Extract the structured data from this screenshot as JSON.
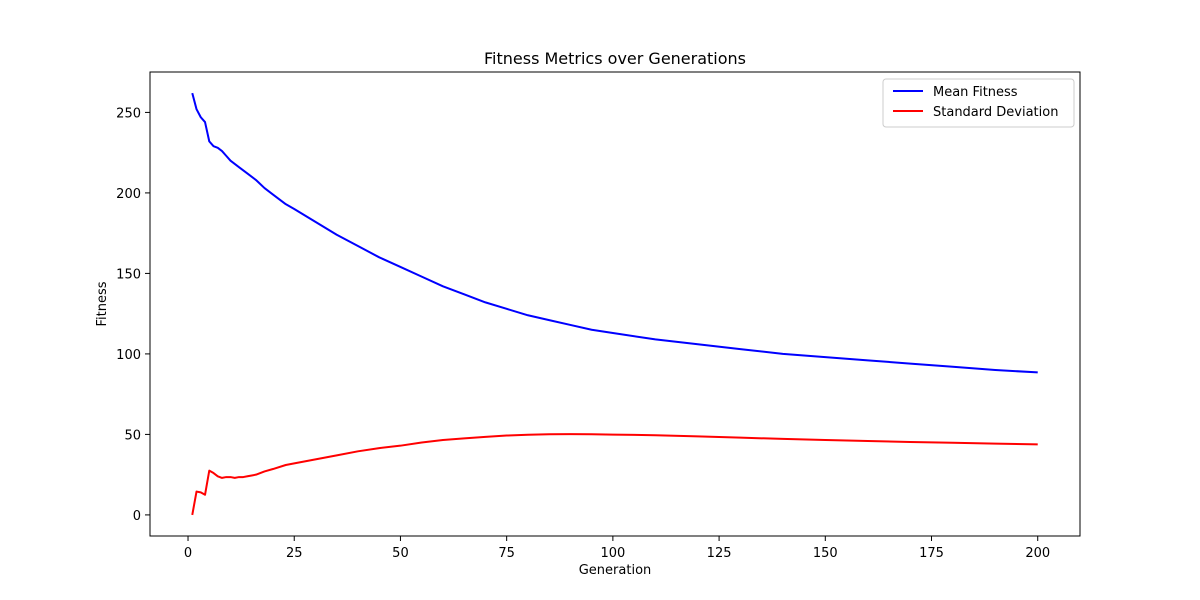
{
  "chart_data": {
    "type": "line",
    "title": "Fitness Metrics over Generations",
    "xlabel": "Generation",
    "ylabel": "Fitness",
    "xlim": [
      -8.95,
      209.95
    ],
    "ylim": [
      -13.1,
      275.1
    ],
    "xticks": [
      0,
      25,
      50,
      75,
      100,
      125,
      150,
      175,
      200
    ],
    "yticks": [
      0,
      50,
      100,
      150,
      200,
      250
    ],
    "grid": false,
    "legend_position": "top-right",
    "series": [
      {
        "name": "Mean Fitness",
        "color": "#0000ff",
        "points": [
          [
            1,
            262
          ],
          [
            2,
            252
          ],
          [
            3,
            247
          ],
          [
            4,
            244
          ],
          [
            5,
            232
          ],
          [
            6,
            229
          ],
          [
            7,
            228
          ],
          [
            8,
            226
          ],
          [
            9,
            223
          ],
          [
            10,
            220
          ],
          [
            12,
            216
          ],
          [
            14,
            212
          ],
          [
            16,
            208
          ],
          [
            18,
            203
          ],
          [
            20,
            199
          ],
          [
            23,
            193
          ],
          [
            25,
            190
          ],
          [
            30,
            182
          ],
          [
            35,
            174
          ],
          [
            40,
            167
          ],
          [
            45,
            160
          ],
          [
            50,
            154
          ],
          [
            55,
            148
          ],
          [
            60,
            142
          ],
          [
            65,
            137
          ],
          [
            70,
            132
          ],
          [
            75,
            128
          ],
          [
            80,
            124
          ],
          [
            85,
            121
          ],
          [
            90,
            118
          ],
          [
            95,
            115
          ],
          [
            100,
            113
          ],
          [
            110,
            109
          ],
          [
            120,
            106
          ],
          [
            130,
            103
          ],
          [
            140,
            100
          ],
          [
            150,
            98
          ],
          [
            160,
            96
          ],
          [
            170,
            94
          ],
          [
            180,
            92
          ],
          [
            190,
            90
          ],
          [
            200,
            88.5
          ]
        ]
      },
      {
        "name": "Standard Deviation",
        "color": "#ff0000",
        "points": [
          [
            1,
            0
          ],
          [
            2,
            14.5
          ],
          [
            3,
            14
          ],
          [
            4,
            12.5
          ],
          [
            5,
            27.5
          ],
          [
            6,
            26
          ],
          [
            7,
            24
          ],
          [
            8,
            23
          ],
          [
            9,
            23.5
          ],
          [
            10,
            23.5
          ],
          [
            11,
            23
          ],
          [
            12,
            23.5
          ],
          [
            13,
            23.5
          ],
          [
            14,
            24
          ],
          [
            15,
            24.5
          ],
          [
            16,
            25
          ],
          [
            18,
            27
          ],
          [
            20,
            28.5
          ],
          [
            23,
            31
          ],
          [
            25,
            32
          ],
          [
            30,
            34.5
          ],
          [
            35,
            37
          ],
          [
            40,
            39.5
          ],
          [
            45,
            41.5
          ],
          [
            50,
            43
          ],
          [
            55,
            45
          ],
          [
            60,
            46.5
          ],
          [
            65,
            47.5
          ],
          [
            70,
            48.5
          ],
          [
            75,
            49.3
          ],
          [
            80,
            49.8
          ],
          [
            85,
            50.1
          ],
          [
            90,
            50.2
          ],
          [
            95,
            50.1
          ],
          [
            100,
            49.9
          ],
          [
            110,
            49.5
          ],
          [
            120,
            48.8
          ],
          [
            130,
            48
          ],
          [
            140,
            47.2
          ],
          [
            150,
            46.5
          ],
          [
            160,
            45.9
          ],
          [
            170,
            45.3
          ],
          [
            180,
            44.8
          ],
          [
            190,
            44.3
          ],
          [
            200,
            43.8
          ]
        ]
      }
    ]
  }
}
